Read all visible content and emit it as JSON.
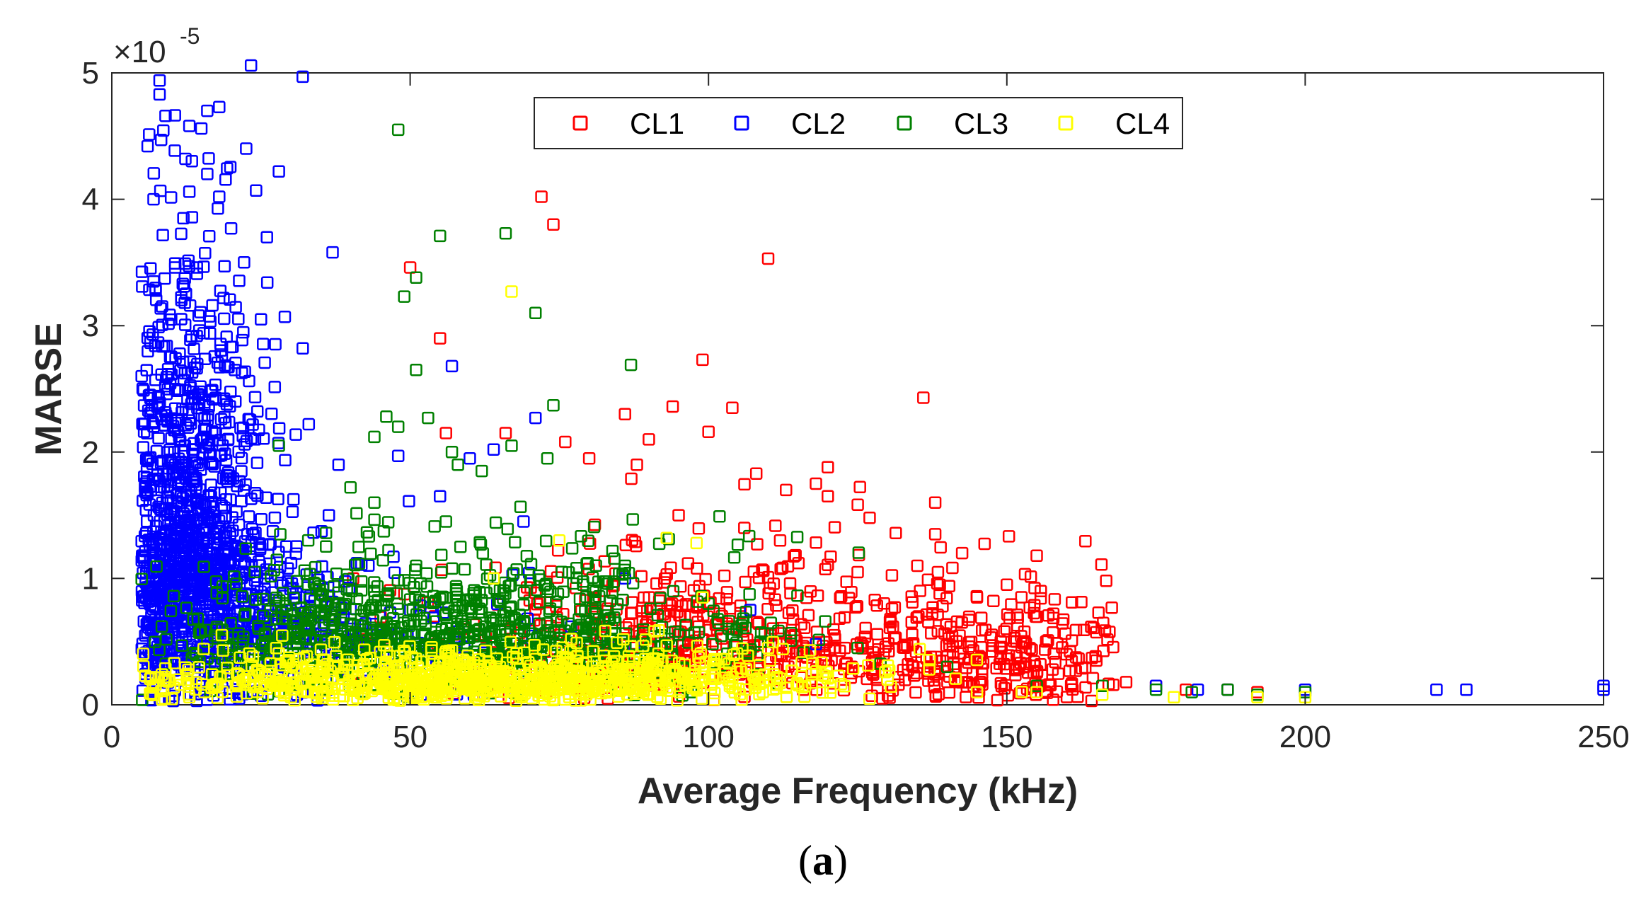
{
  "chart_data": {
    "type": "scatter",
    "title": "",
    "xlabel": "Average Frequency (kHz)",
    "ylabel": "MARSE",
    "xlim": [
      0,
      250
    ],
    "ylim": [
      0,
      5
    ],
    "y_exponent_label": "×10",
    "y_exponent_power": "-5",
    "xticks": [
      "0",
      "50",
      "100",
      "150",
      "200",
      "250"
    ],
    "yticks": [
      "0",
      "1",
      "2",
      "3",
      "4",
      "5"
    ],
    "grid": false,
    "legend_position": "top-center",
    "marker": "square-open",
    "caption_prefix": "(",
    "caption_letter": "a",
    "caption_suffix": ")",
    "series": [
      {
        "name": "CL1",
        "color": "#ff0000",
        "points": [
          [
            72,
            4.02
          ],
          [
            74,
            3.8
          ],
          [
            110,
            3.53
          ],
          [
            50,
            3.46
          ],
          [
            55,
            2.9
          ],
          [
            136,
            2.43
          ],
          [
            99,
            2.73
          ],
          [
            94,
            2.36
          ],
          [
            104,
            2.35
          ],
          [
            86,
            2.3
          ],
          [
            56,
            2.15
          ],
          [
            66,
            2.15
          ],
          [
            90,
            2.1
          ],
          [
            100,
            2.16
          ],
          [
            76,
            2.08
          ],
          [
            88,
            1.9
          ],
          [
            108,
            1.83
          ],
          [
            120,
            1.88
          ],
          [
            80,
            1.95
          ],
          [
            113,
            1.7
          ],
          [
            118,
            1.75
          ],
          [
            120,
            1.65
          ],
          [
            138,
            1.6
          ],
          [
            95,
            1.5
          ],
          [
            127,
            1.48
          ],
          [
            106,
            1.4
          ],
          [
            138,
            1.35
          ],
          [
            112,
            1.3
          ],
          [
            155,
            1.18
          ],
          [
            150,
            0.95
          ],
          [
            145,
            0.85
          ],
          [
            135,
            1.1
          ],
          [
            125,
            1.05
          ],
          [
            160,
            0.4
          ],
          [
            165,
            0.35
          ],
          [
            170,
            0.18
          ],
          [
            175,
            0.15
          ],
          [
            180,
            0.12
          ],
          [
            187,
            0.12
          ],
          [
            192,
            0.1
          ]
        ],
        "clusters": [
          [
            120,
            0.5,
            32,
            0.38,
            420
          ],
          [
            95,
            0.45,
            18,
            0.3,
            160
          ],
          [
            145,
            0.3,
            12,
            0.25,
            140
          ],
          [
            75,
            0.35,
            15,
            0.3,
            60
          ]
        ]
      },
      {
        "name": "CL2",
        "color": "#0000ff",
        "points": [
          [
            32,
            4.97
          ],
          [
            8,
            4.94
          ],
          [
            8,
            4.83
          ],
          [
            6,
            4.42
          ],
          [
            9,
            4.66
          ],
          [
            13,
            4.58
          ],
          [
            15,
            4.56
          ],
          [
            16,
            4.7
          ],
          [
            18,
            4.73
          ],
          [
            28,
            4.22
          ],
          [
            16,
            4.2
          ],
          [
            7,
            4.0
          ],
          [
            13,
            4.06
          ],
          [
            18,
            4.02
          ],
          [
            12,
            3.85
          ],
          [
            20,
            3.77
          ],
          [
            37,
            3.58
          ],
          [
            26,
            3.7
          ],
          [
            7,
            3.35
          ],
          [
            29,
            3.07
          ],
          [
            32,
            2.82
          ],
          [
            57,
            2.68
          ],
          [
            25,
            3.05
          ],
          [
            71,
            2.27
          ],
          [
            33,
            2.22
          ],
          [
            38,
            1.9
          ],
          [
            5,
            2.6
          ],
          [
            48,
            1.97
          ],
          [
            60,
            1.95
          ],
          [
            64,
            2.02
          ],
          [
            69,
            1.45
          ],
          [
            55,
            1.65
          ],
          [
            86,
            1.0
          ],
          [
            107,
            0.75
          ],
          [
            118,
            0.48
          ],
          [
            175,
            0.15
          ],
          [
            182,
            0.12
          ],
          [
            187,
            0.12
          ],
          [
            200,
            0.12
          ],
          [
            222,
            0.12
          ],
          [
            227,
            0.12
          ],
          [
            250,
            0.12
          ],
          [
            250,
            0.15
          ]
        ],
        "clusters": [
          [
            13,
            1.4,
            6,
            1.1,
            900
          ],
          [
            18,
            0.7,
            10,
            0.4,
            350
          ],
          [
            35,
            0.5,
            20,
            0.35,
            200
          ]
        ]
      },
      {
        "name": "CL3",
        "color": "#008000",
        "points": [
          [
            48,
            4.55
          ],
          [
            55,
            3.71
          ],
          [
            66,
            3.73
          ],
          [
            51,
            3.38
          ],
          [
            49,
            3.23
          ],
          [
            71,
            3.1
          ],
          [
            87,
            2.69
          ],
          [
            51,
            2.65
          ],
          [
            74,
            2.37
          ],
          [
            46,
            2.28
          ],
          [
            53,
            2.27
          ],
          [
            48,
            2.2
          ],
          [
            44,
            2.12
          ],
          [
            57,
            2.0
          ],
          [
            67,
            2.05
          ],
          [
            58,
            1.9
          ],
          [
            62,
            1.85
          ],
          [
            73,
            1.95
          ],
          [
            28,
            2.05
          ],
          [
            40,
            1.72
          ],
          [
            44,
            1.6
          ],
          [
            56,
            1.45
          ],
          [
            86,
            1.1
          ],
          [
            79,
            0.95
          ],
          [
            100,
            0.8
          ],
          [
            110,
            0.5
          ],
          [
            125,
            0.45
          ],
          [
            140,
            0.3
          ],
          [
            155,
            0.15
          ],
          [
            166,
            0.15
          ],
          [
            175,
            0.12
          ],
          [
            181,
            0.1
          ],
          [
            187,
            0.12
          ],
          [
            192,
            0.08
          ],
          [
            200,
            0.1
          ]
        ],
        "clusters": [
          [
            55,
            0.6,
            22,
            0.35,
            650
          ],
          [
            85,
            0.45,
            15,
            0.25,
            150
          ],
          [
            30,
            0.45,
            10,
            0.3,
            120
          ]
        ]
      },
      {
        "name": "CL4",
        "color": "#ffff00",
        "points": [
          [
            67,
            3.27
          ],
          [
            98,
            1.28
          ],
          [
            93,
            1.32
          ],
          [
            75,
            1.3
          ],
          [
            64,
            1.0
          ],
          [
            99,
            0.85
          ],
          [
            110,
            0.45
          ],
          [
            130,
            0.2
          ],
          [
            137,
            0.28
          ],
          [
            145,
            0.1
          ],
          [
            155,
            0.1
          ],
          [
            166,
            0.08
          ],
          [
            178,
            0.06
          ],
          [
            192,
            0.06
          ],
          [
            200,
            0.06
          ],
          [
            13,
            0.06
          ]
        ],
        "clusters": [
          [
            60,
            0.18,
            28,
            0.13,
            900
          ],
          [
            90,
            0.25,
            12,
            0.15,
            100
          ]
        ]
      }
    ]
  }
}
